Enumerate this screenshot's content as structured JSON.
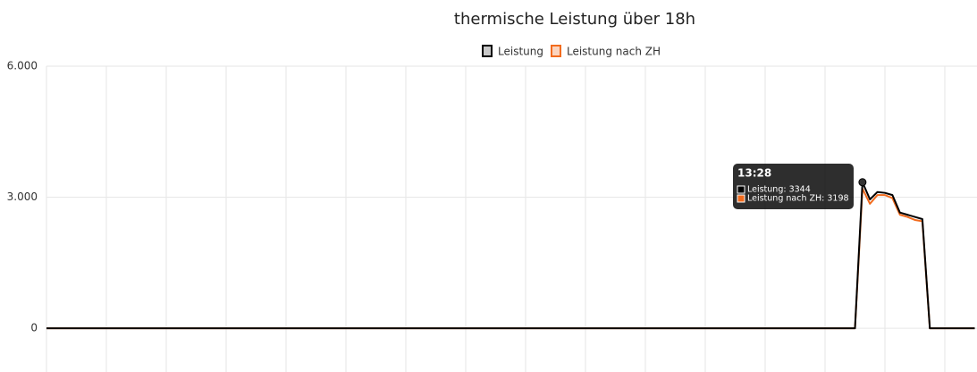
{
  "chart_data": {
    "type": "line",
    "title": "thermische Leistung über 18h",
    "categories": [
      null,
      null,
      null,
      null,
      null,
      null,
      null,
      null,
      null,
      null,
      null,
      null,
      null,
      null,
      null,
      null,
      null,
      null,
      null,
      null,
      null,
      null,
      null,
      null,
      null,
      null,
      null,
      null,
      null,
      null,
      null,
      null,
      null,
      null,
      null,
      null,
      null,
      null,
      null,
      null,
      null,
      null,
      null,
      null,
      null,
      null,
      null,
      null,
      null,
      null,
      null,
      null,
      null,
      null,
      null,
      null,
      null,
      null,
      null,
      null,
      null,
      null,
      null,
      null,
      null,
      null,
      null,
      null,
      null,
      null,
      null,
      null,
      null,
      null,
      null,
      null,
      null,
      null,
      null,
      null,
      null,
      null,
      null,
      null,
      null,
      null,
      null,
      null,
      null,
      null,
      null,
      null,
      null,
      null,
      null,
      null,
      null,
      null,
      null,
      null,
      null,
      null,
      null,
      null,
      null,
      null,
      null,
      null,
      null,
      "13:28",
      null,
      null,
      null,
      null,
      null,
      null,
      null,
      null,
      null,
      null,
      null,
      null,
      null,
      null,
      null
    ],
    "series": [
      {
        "name": "Leistung",
        "color": "#000000",
        "fill": "#c8c8c8",
        "values": [
          0,
          0,
          0,
          0,
          0,
          0,
          0,
          0,
          0,
          0,
          0,
          0,
          0,
          0,
          0,
          0,
          0,
          0,
          0,
          0,
          0,
          0,
          0,
          0,
          0,
          0,
          0,
          0,
          0,
          0,
          0,
          0,
          0,
          0,
          0,
          0,
          0,
          0,
          0,
          0,
          0,
          0,
          0,
          0,
          0,
          0,
          0,
          0,
          0,
          0,
          0,
          0,
          0,
          0,
          0,
          0,
          0,
          0,
          0,
          0,
          0,
          0,
          0,
          0,
          0,
          0,
          0,
          0,
          0,
          0,
          0,
          0,
          0,
          0,
          0,
          0,
          0,
          0,
          0,
          0,
          0,
          0,
          0,
          0,
          0,
          0,
          0,
          0,
          0,
          0,
          0,
          0,
          0,
          0,
          0,
          0,
          0,
          0,
          0,
          0,
          0,
          0,
          0,
          0,
          0,
          0,
          0,
          0,
          0,
          3344,
          2950,
          3120,
          3100,
          3050,
          2650,
          2600,
          2550,
          2500,
          0,
          0,
          0,
          0,
          0,
          0,
          0
        ]
      },
      {
        "name": "Leistung nach ZH",
        "color": "#f26b1d",
        "fill": "#fbd3bd",
        "values": [
          0,
          0,
          0,
          0,
          0,
          0,
          0,
          0,
          0,
          0,
          0,
          0,
          0,
          0,
          0,
          0,
          0,
          0,
          0,
          0,
          0,
          0,
          0,
          0,
          0,
          0,
          0,
          0,
          0,
          0,
          0,
          0,
          0,
          0,
          0,
          0,
          0,
          0,
          0,
          0,
          0,
          0,
          0,
          0,
          0,
          0,
          0,
          0,
          0,
          0,
          0,
          0,
          0,
          0,
          0,
          0,
          0,
          0,
          0,
          0,
          0,
          0,
          0,
          0,
          0,
          0,
          0,
          0,
          0,
          0,
          0,
          0,
          0,
          0,
          0,
          0,
          0,
          0,
          0,
          0,
          0,
          0,
          0,
          0,
          0,
          0,
          0,
          0,
          0,
          0,
          0,
          0,
          0,
          0,
          0,
          0,
          0,
          0,
          0,
          0,
          0,
          0,
          0,
          0,
          0,
          0,
          0,
          0,
          0,
          3198,
          2850,
          3050,
          3050,
          2980,
          2600,
          2550,
          2480,
          2450,
          0,
          0,
          0,
          0,
          0,
          0,
          0
        ]
      }
    ],
    "tooltip_lines": [
      "Leistung: 3344",
      "Leistung nach ZH: 3198"
    ],
    "ylim": [
      -1000,
      6000
    ],
    "yticks": [
      {
        "value": 6000,
        "label": "6.000"
      },
      {
        "value": 3000,
        "label": "3.000"
      },
      0
    ],
    "grid": true
  }
}
